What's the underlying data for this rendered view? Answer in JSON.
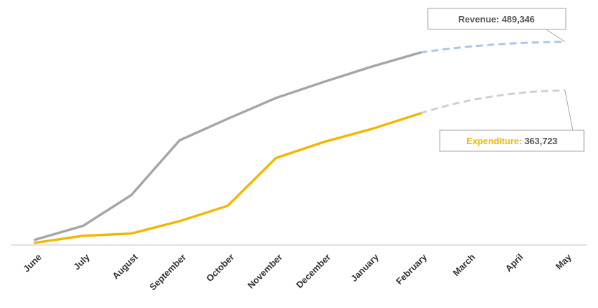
{
  "chart_data": {
    "type": "line",
    "categories": [
      "June",
      "July",
      "August",
      "September",
      "October",
      "November",
      "December",
      "January",
      "February",
      "March",
      "April",
      "May"
    ],
    "series": [
      {
        "key": "revenue",
        "color": "#a6a6a6",
        "forecast_color": "#a9c6e8",
        "values": [
          6000,
          24000,
          64000,
          135000,
          163000,
          190000,
          211000,
          231000,
          249000,
          null,
          null,
          null
        ],
        "forecast": [
          null,
          null,
          null,
          null,
          null,
          null,
          null,
          null,
          249000,
          null,
          null,
          263000
        ]
      },
      {
        "key": "expenditure",
        "color": "#f2b705",
        "forecast_color": "#d0d0d0",
        "values": [
          2000,
          11000,
          14000,
          30000,
          50000,
          112000,
          133000,
          150000,
          170000,
          null,
          null,
          null
        ],
        "forecast": [
          null,
          null,
          null,
          null,
          null,
          null,
          null,
          null,
          170000,
          null,
          null,
          200000
        ]
      }
    ],
    "ylim": [
      0,
      300000
    ],
    "grid": false,
    "legend": "none",
    "axis_color": "#d9d9d9",
    "callouts": [
      {
        "key": "revenue",
        "label": "Revenue",
        "value": "489,346",
        "text": "Revenue: 489,346",
        "label_color": "#595959",
        "value_color": "#595959"
      },
      {
        "key": "expenditure",
        "label": "Expenditure",
        "value": "363,723",
        "label_color": "#f2b705",
        "value_color": "#595959"
      }
    ]
  }
}
